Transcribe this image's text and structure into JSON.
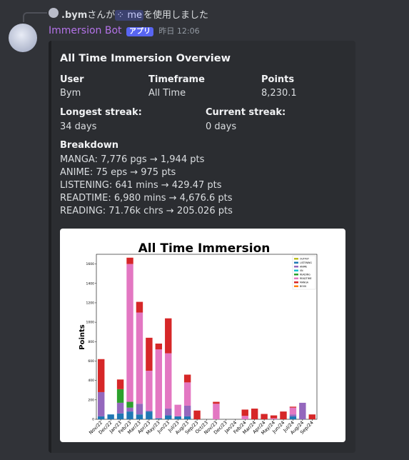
{
  "reply": {
    "user": ".bym",
    "before": "さんが",
    "command": "me",
    "after": "を使用しました"
  },
  "message": {
    "author": "Immersion Bot",
    "badge": "アプリ",
    "timestamp": "昨日 12:06"
  },
  "embed": {
    "title": "All Time Immersion Overview",
    "fields": [
      {
        "name": "User",
        "value": "Bym"
      },
      {
        "name": "Timeframe",
        "value": "All Time"
      },
      {
        "name": "Points",
        "value": "8,230.1"
      },
      {
        "name": "Longest streak:",
        "value": "34 days"
      },
      {
        "name": "Current streak:",
        "value": "0 days"
      }
    ],
    "breakdown": {
      "name": "Breakdown",
      "lines": [
        "MANGA: 7,776 pgs → 1,944 pts",
        "ANIME: 75 eps → 975 pts",
        "LISTENING: 641 mins → 429.47 pts",
        "READTIME: 6,980 mins → 4,676.6 pts",
        "READING: 71.76k chrs → 205.026 pts"
      ]
    }
  },
  "chart_data": {
    "type": "bar",
    "stacked": true,
    "title": "All Time Immersion",
    "ylabel": "Points",
    "categories": [
      "Nov/22",
      "Dec/22",
      "Jan/23",
      "Feb/23",
      "Mar/23",
      "Apr/23",
      "May/23",
      "Jun/23",
      "Jul/23",
      "Aug/23",
      "Sep/23",
      "Oct/23",
      "Nov/23",
      "Dec/23",
      "Jan/24",
      "Feb/24",
      "Mar/24",
      "Apr/24",
      "May/24",
      "Jun/24",
      "Jul/24",
      "Aug/24",
      "Sep/24"
    ],
    "series": [
      {
        "name": "OUTPUT",
        "color": "#bcbd22",
        "values": [
          0,
          0,
          0,
          0,
          0,
          0,
          0,
          0,
          0,
          0,
          0,
          0,
          0,
          0,
          0,
          0,
          0,
          0,
          0,
          0,
          0,
          0,
          0
        ]
      },
      {
        "name": "LISTENING",
        "color": "#1f77b4",
        "values": [
          30,
          50,
          60,
          80,
          50,
          80,
          10,
          40,
          30,
          30,
          0,
          0,
          0,
          0,
          0,
          0,
          0,
          0,
          0,
          0,
          30,
          0,
          0
        ]
      },
      {
        "name": "ANIME",
        "color": "#9467bd",
        "values": [
          250,
          0,
          110,
          40,
          110,
          10,
          0,
          70,
          0,
          110,
          0,
          0,
          0,
          0,
          0,
          0,
          0,
          0,
          0,
          0,
          20,
          170,
          0
        ]
      },
      {
        "name": "VN",
        "color": "#17becf",
        "values": [
          0,
          0,
          0,
          0,
          0,
          0,
          0,
          0,
          0,
          0,
          0,
          0,
          0,
          0,
          0,
          0,
          0,
          0,
          0,
          0,
          0,
          0,
          0
        ]
      },
      {
        "name": "READING",
        "color": "#2ca02c",
        "values": [
          0,
          0,
          140,
          60,
          0,
          0,
          0,
          0,
          0,
          0,
          0,
          0,
          0,
          0,
          0,
          0,
          0,
          0,
          0,
          0,
          0,
          0,
          0
        ]
      },
      {
        "name": "READTIME",
        "color": "#e377c2",
        "values": [
          0,
          0,
          0,
          1420,
          940,
          410,
          710,
          570,
          120,
          240,
          0,
          0,
          160,
          0,
          0,
          35,
          0,
          0,
          10,
          0,
          70,
          0,
          0
        ]
      },
      {
        "name": "MANGA",
        "color": "#d62728",
        "values": [
          340,
          0,
          100,
          65,
          110,
          340,
          60,
          360,
          0,
          80,
          90,
          0,
          20,
          0,
          0,
          65,
          110,
          55,
          30,
          80,
          10,
          0,
          50
        ]
      },
      {
        "name": "BOOK",
        "color": "#ff7f0e",
        "values": [
          0,
          0,
          0,
          0,
          0,
          0,
          0,
          0,
          0,
          0,
          0,
          0,
          0,
          0,
          0,
          0,
          0,
          0,
          0,
          0,
          0,
          0,
          0
        ]
      }
    ],
    "ylim": [
      0,
      1700
    ],
    "yticks": [
      0,
      200,
      400,
      600,
      800,
      1000,
      1200,
      1400,
      1600
    ],
    "legend": "upper right"
  }
}
